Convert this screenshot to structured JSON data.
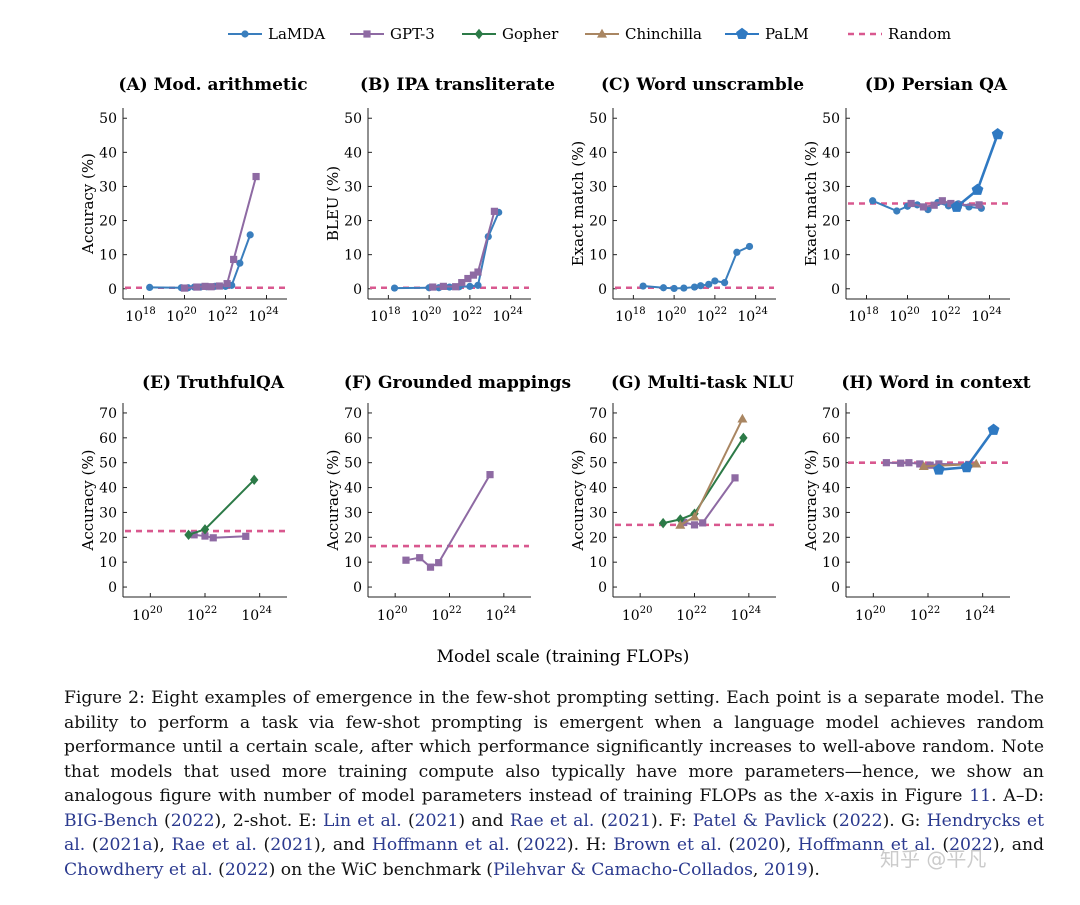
{
  "legend": [
    {
      "key": "lamda",
      "label": "LaMDA",
      "color": "#3a7ebd",
      "marker": "circle"
    },
    {
      "key": "gpt3",
      "label": "GPT-3",
      "color": "#8e6aa3",
      "marker": "square"
    },
    {
      "key": "gopher",
      "label": "Gopher",
      "color": "#2c7a47",
      "marker": "diamond"
    },
    {
      "key": "chinchilla",
      "label": "Chinchilla",
      "color": "#a98662",
      "marker": "triangle"
    },
    {
      "key": "palm",
      "label": "PaLM",
      "color": "#2f79c2",
      "marker": "pentagon"
    },
    {
      "key": "random",
      "label": "Random",
      "color": "#d9588f",
      "marker": "dashed"
    }
  ],
  "shared_xlabel": "Model scale (training FLOPs)",
  "chart_data": [
    {
      "id": "A",
      "type": "line",
      "title": "(A) Mod. arithmetic",
      "ylabel": "Accuracy (%)",
      "x_scale": "log10",
      "xlim": [
        1e+17,
        1e+25
      ],
      "xticks": [
        1e+18,
        1e+20,
        1e+22,
        1e+24
      ],
      "xtick_labels": [
        "18",
        "20",
        "22",
        "24"
      ],
      "ylim": [
        -3,
        53
      ],
      "yticks": [
        0,
        10,
        20,
        30,
        40,
        50
      ],
      "random": 0.3,
      "series": [
        {
          "name": "LaMDA",
          "key": "lamda",
          "points": [
            [
              2e+18,
              0.4
            ],
            [
              7e+19,
              0.3
            ],
            [
              1.5e+20,
              0.3
            ],
            [
              3e+20,
              0.5
            ],
            [
              6e+20,
              0.5
            ],
            [
              1.2e+21,
              0.6
            ],
            [
              3e+21,
              0.7
            ],
            [
              1e+22,
              0.7
            ],
            [
              2e+22,
              1.0
            ],
            [
              5e+22,
              7.5
            ],
            [
              1.6e+23,
              15.8
            ]
          ]
        },
        {
          "name": "GPT-3",
          "key": "gpt3",
          "points": [
            [
              1e+20,
              0.2
            ],
            [
              4e+20,
              0.5
            ],
            [
              1e+21,
              0.7
            ],
            [
              2e+21,
              0.6
            ],
            [
              5e+21,
              0.8
            ],
            [
              1.2e+22,
              1.5
            ],
            [
              2.5e+22,
              8.6
            ],
            [
              3.1e+23,
              32.9
            ]
          ]
        }
      ]
    },
    {
      "id": "B",
      "type": "line",
      "title": "(B) IPA transliterate",
      "ylabel": "BLEU (%)",
      "x_scale": "log10",
      "xlim": [
        1e+17,
        1e+25
      ],
      "xticks": [
        1e+18,
        1e+20,
        1e+22,
        1e+24
      ],
      "xtick_labels": [
        "18",
        "20",
        "22",
        "24"
      ],
      "ylim": [
        -3,
        53
      ],
      "yticks": [
        0,
        10,
        20,
        30,
        40,
        50
      ],
      "random": 0.3,
      "series": [
        {
          "name": "LaMDA",
          "key": "lamda",
          "points": [
            [
              2e+18,
              0.2
            ],
            [
              1e+20,
              0.3
            ],
            [
              3e+20,
              0.3
            ],
            [
              1e+21,
              0.5
            ],
            [
              3e+21,
              0.6
            ],
            [
              1e+22,
              0.7
            ],
            [
              2.5e+22,
              1.0
            ],
            [
              8e+22,
              15.3
            ],
            [
              2.6e+23,
              22.4
            ]
          ]
        },
        {
          "name": "GPT-3",
          "key": "gpt3",
          "points": [
            [
              1.5e+20,
              0.5
            ],
            [
              5e+20,
              0.7
            ],
            [
              2e+21,
              0.6
            ],
            [
              4e+21,
              1.8
            ],
            [
              8e+21,
              3.0
            ],
            [
              1.5e+22,
              4.0
            ],
            [
              2.5e+22,
              4.9
            ],
            [
              1.6e+23,
              22.7
            ]
          ]
        }
      ]
    },
    {
      "id": "C",
      "type": "line",
      "title": "(C) Word unscramble",
      "ylabel": "Exact match (%)",
      "x_scale": "log10",
      "xlim": [
        1e+17,
        1e+25
      ],
      "xticks": [
        1e+18,
        1e+20,
        1e+22,
        1e+24
      ],
      "xtick_labels": [
        "18",
        "20",
        "22",
        "24"
      ],
      "ylim": [
        -3,
        53
      ],
      "yticks": [
        0,
        10,
        20,
        30,
        40,
        50
      ],
      "random": 0.3,
      "series": [
        {
          "name": "LaMDA",
          "key": "lamda",
          "points": [
            [
              3e+18,
              0.8
            ],
            [
              3e+19,
              0.3
            ],
            [
              1e+20,
              0.1
            ],
            [
              3e+20,
              0.2
            ],
            [
              1e+21,
              0.5
            ],
            [
              2e+21,
              0.9
            ],
            [
              5e+21,
              1.3
            ],
            [
              1e+22,
              2.3
            ],
            [
              3e+22,
              1.8
            ],
            [
              1.2e+23,
              10.7
            ],
            [
              5e+23,
              12.4
            ]
          ]
        }
      ]
    },
    {
      "id": "D",
      "type": "line",
      "title": "(D) Persian QA",
      "ylabel": "Exact match (%)",
      "x_scale": "log10",
      "xlim": [
        1e+17,
        1e+25
      ],
      "xticks": [
        1e+18,
        1e+20,
        1e+22,
        1e+24
      ],
      "xtick_labels": [
        "18",
        "20",
        "22",
        "24"
      ],
      "ylim": [
        -3,
        53
      ],
      "yticks": [
        0,
        10,
        20,
        30,
        40,
        50
      ],
      "random": 25,
      "series": [
        {
          "name": "LaMDA",
          "key": "lamda",
          "points": [
            [
              2e+18,
              25.8
            ],
            [
              3e+19,
              22.8
            ],
            [
              1e+20,
              24.2
            ],
            [
              3e+20,
              24.6
            ],
            [
              1e+21,
              23.2
            ],
            [
              3e+21,
              25.3
            ],
            [
              1e+22,
              24.3
            ],
            [
              3e+22,
              24.9
            ],
            [
              1e+23,
              24.0
            ],
            [
              4e+23,
              23.6
            ]
          ]
        },
        {
          "name": "GPT-3",
          "key": "gpt3",
          "points": [
            [
              1.5e+20,
              25.0
            ],
            [
              6e+20,
              24.0
            ],
            [
              2e+21,
              24.5
            ],
            [
              5e+21,
              25.8
            ],
            [
              1.3e+22,
              25.0
            ],
            [
              3e+22,
              24.6
            ],
            [
              3.1e+23,
              24.6
            ]
          ]
        },
        {
          "name": "PaLM",
          "key": "palm",
          "points": [
            [
              2.5e+22,
              24.0
            ],
            [
              2.6e+23,
              29.0
            ],
            [
              2.5e+24,
              45.3
            ]
          ]
        }
      ]
    },
    {
      "id": "E",
      "type": "line",
      "title": "(E) TruthfulQA",
      "ylabel": "Accuracy (%)",
      "x_scale": "log10",
      "xlim": [
        1e+19,
        1e+25
      ],
      "xticks": [
        1e+20,
        1e+22,
        1e+24
      ],
      "xtick_labels": [
        "20",
        "22",
        "24"
      ],
      "ylim": [
        -4,
        74
      ],
      "yticks": [
        0,
        10,
        20,
        30,
        40,
        50,
        60,
        70
      ],
      "random": 22.5,
      "series": [
        {
          "name": "GPT-3",
          "key": "gpt3",
          "points": [
            [
              4e+21,
              21.0
            ],
            [
              1e+22,
              20.5
            ],
            [
              2e+22,
              19.8
            ],
            [
              3.1e+23,
              20.4
            ]
          ]
        },
        {
          "name": "Gopher",
          "key": "gopher",
          "points": [
            [
              2.5e+21,
              21.0
            ],
            [
              1e+22,
              23.2
            ],
            [
              6.3e+23,
              43.1
            ]
          ]
        }
      ]
    },
    {
      "id": "F",
      "type": "line",
      "title": "(F) Grounded mappings",
      "ylabel": "Accuracy (%)",
      "x_scale": "log10",
      "xlim": [
        1e+19,
        1e+25
      ],
      "xticks": [
        1e+20,
        1e+22,
        1e+24
      ],
      "xtick_labels": [
        "20",
        "22",
        "24"
      ],
      "ylim": [
        -4,
        74
      ],
      "yticks": [
        0,
        10,
        20,
        30,
        40,
        50,
        60,
        70
      ],
      "random": 16.5,
      "series": [
        {
          "name": "GPT-3",
          "key": "gpt3",
          "points": [
            [
              2.5e+20,
              10.8
            ],
            [
              8e+20,
              11.8
            ],
            [
              2e+21,
              8.0
            ],
            [
              4e+21,
              9.8
            ],
            [
              3.1e+23,
              45.2
            ]
          ]
        }
      ]
    },
    {
      "id": "G",
      "type": "line",
      "title": "(G) Multi-task NLU",
      "ylabel": "Accuracy (%)",
      "x_scale": "log10",
      "xlim": [
        1e+19,
        1e+25
      ],
      "xticks": [
        1e+20,
        1e+22,
        1e+24
      ],
      "xtick_labels": [
        "20",
        "22",
        "24"
      ],
      "ylim": [
        -4,
        74
      ],
      "yticks": [
        0,
        10,
        20,
        30,
        40,
        50,
        60,
        70
      ],
      "random": 25,
      "series": [
        {
          "name": "GPT-3",
          "key": "gpt3",
          "points": [
            [
              4e+21,
              26.0
            ],
            [
              1e+22,
              25.0
            ],
            [
              2e+22,
              25.8
            ],
            [
              3.1e+23,
              43.9
            ]
          ]
        },
        {
          "name": "Gopher",
          "key": "gopher",
          "points": [
            [
              7e+20,
              25.7
            ],
            [
              3e+21,
              27.2
            ],
            [
              1e+22,
              29.5
            ],
            [
              6.3e+23,
              60.0
            ]
          ]
        },
        {
          "name": "Chinchilla",
          "key": "chinchilla",
          "points": [
            [
              3e+21,
              24.9
            ],
            [
              1e+22,
              28.2
            ],
            [
              5.8e+23,
              67.6
            ]
          ]
        }
      ]
    },
    {
      "id": "H",
      "type": "line",
      "title": "(H) Word in context",
      "ylabel": "Accuracy (%)",
      "x_scale": "log10",
      "xlim": [
        1e+19,
        1e+25
      ],
      "xticks": [
        1e+20,
        1e+22,
        1e+24
      ],
      "xtick_labels": [
        "20",
        "22",
        "24"
      ],
      "ylim": [
        -4,
        74
      ],
      "yticks": [
        0,
        10,
        20,
        30,
        40,
        50,
        60,
        70
      ],
      "random": 50,
      "series": [
        {
          "name": "GPT-3",
          "key": "gpt3",
          "points": [
            [
              3e+20,
              50.0
            ],
            [
              1e+21,
              49.8
            ],
            [
              2e+21,
              50.0
            ],
            [
              5e+21,
              49.5
            ],
            [
              1.2e+22,
              49.0
            ],
            [
              2.5e+22,
              49.5
            ],
            [
              3.1e+23,
              49.3
            ]
          ]
        },
        {
          "name": "Chinchilla",
          "key": "chinchilla",
          "points": [
            [
              7e+21,
              48.5
            ],
            [
              5.8e+23,
              49.5
            ]
          ]
        },
        {
          "name": "PaLM",
          "key": "palm",
          "points": [
            [
              2.5e+22,
              47.2
            ],
            [
              2.6e+23,
              48.2
            ],
            [
              2.5e+24,
              63.2
            ]
          ]
        }
      ]
    }
  ],
  "caption": {
    "figure_label": "Figure 2:",
    "text_1": "Eight examples of emergence in the few-shot prompting setting. Each point is a separate model. The ability to perform a task via few-shot prompting is emergent when a language model achieves random performance until a certain scale, after which performance significantly increases to well-above random. Note that models that used more training compute also typically have more parameters—hence, we show an analogous figure with number of model parameters instead of training FLOPs as the",
    "text_x": "x",
    "text_2": "-axis in Figure",
    "fig_ref": "11",
    "text_3": ". A–D:",
    "ref_bigbench": "BIG-Bench",
    "ref_bigbench_year": "2022",
    "text_4": "), 2-shot. E:",
    "ref_lin": "Lin et al.",
    "ref_lin_year": "2021",
    "text_and": ") and",
    "ref_rae": "Rae et al.",
    "ref_rae_year": "2021",
    "text_f": "). F:",
    "ref_patel": "Patel & Pavlick",
    "ref_patel_year": "2022",
    "text_g": "). G:",
    "ref_hendrycks": "Hendrycks et al.",
    "ref_hendrycks_year": "2021a",
    "text_comma": "),",
    "ref_rae2": "Rae et al.",
    "ref_rae2_year": "2021",
    "text_and2": "), and",
    "ref_hoffmann": "Hoffmann et al.",
    "ref_hoffmann_year": "2022",
    "text_h": "). H:",
    "ref_brown": "Brown et al.",
    "ref_brown_year": "2020",
    "text_comma2": "),",
    "ref_hoffmann2": "Hoffmann et al.",
    "ref_hoffmann2_year": "2022",
    "text_and3": "), and",
    "ref_chowdhery": "Chowdhery et al.",
    "ref_chowdhery_year": "2022",
    "text_wic": ") on the WiC benchmark (",
    "ref_pilehvar": "Pilehvar & Camacho-Collados",
    "text_sep": ",",
    "ref_pilehvar_year": "2019",
    "text_end": ")."
  },
  "watermark": "知乎 @平凡"
}
